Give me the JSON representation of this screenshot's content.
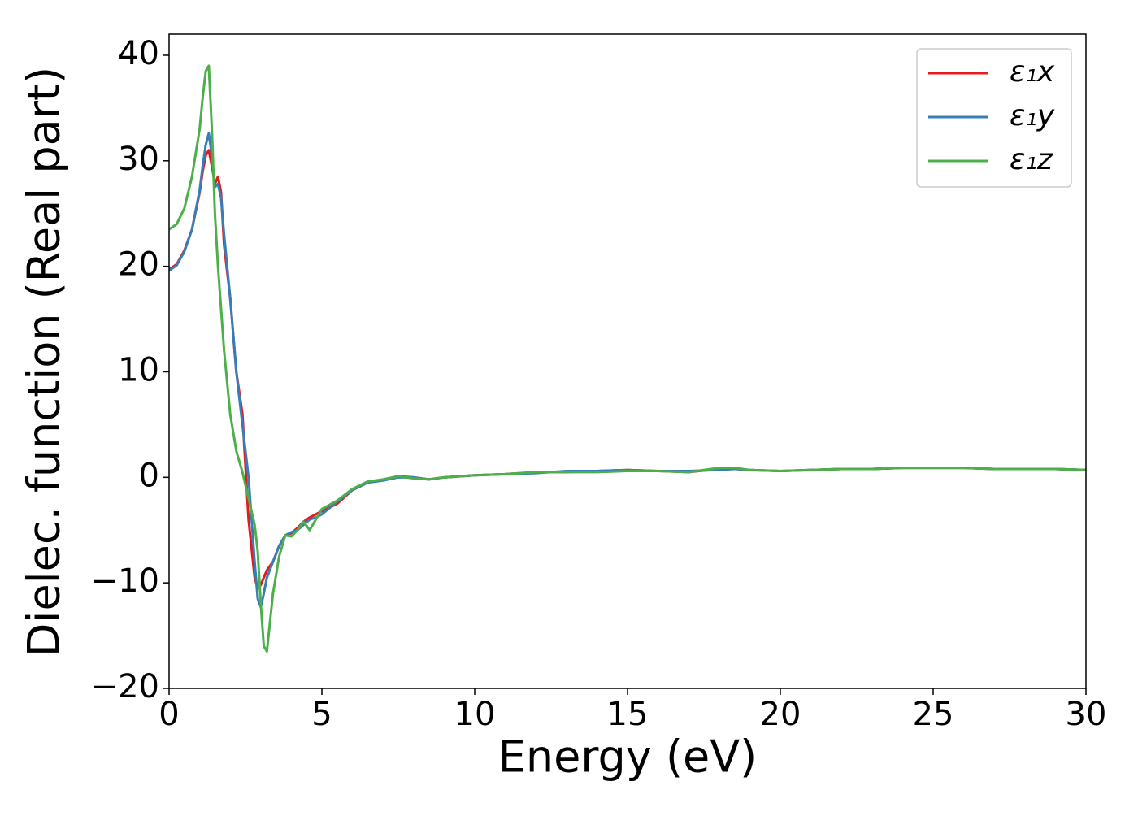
{
  "chart_data": {
    "type": "line",
    "xlabel": "Energy (eV)",
    "ylabel": "Dielec. function (Real part)",
    "xlim": [
      0,
      30
    ],
    "ylim": [
      -20,
      42
    ],
    "xticks": [
      0,
      5,
      10,
      15,
      20,
      25,
      30
    ],
    "yticks": [
      {
        "value": -20,
        "label": "−20"
      },
      {
        "value": -10,
        "label": "−10"
      },
      0,
      10,
      20,
      30,
      40
    ],
    "legend": "upper right",
    "x": [
      0,
      0.25,
      0.5,
      0.75,
      1.0,
      1.1,
      1.2,
      1.3,
      1.4,
      1.5,
      1.6,
      1.7,
      1.8,
      2.0,
      2.2,
      2.4,
      2.6,
      2.8,
      2.9,
      3.0,
      3.1,
      3.2,
      3.4,
      3.6,
      3.8,
      4.0,
      4.2,
      4.4,
      4.6,
      4.8,
      5.0,
      5.5,
      6.0,
      6.5,
      7.0,
      7.5,
      8.0,
      8.5,
      9,
      10,
      11,
      12,
      13,
      14,
      15,
      16,
      17,
      18,
      18.5,
      19,
      20,
      21,
      22,
      23,
      24,
      25,
      26,
      27,
      28,
      29,
      30
    ],
    "series": [
      {
        "name": "ε₁x",
        "color": "#e41a1c",
        "values": [
          19.7,
          20.2,
          21.5,
          23.5,
          27,
          29,
          30.5,
          31,
          29.5,
          27.8,
          28.5,
          27,
          22,
          17,
          10,
          6,
          -4,
          -9.5,
          -10.5,
          -10.2,
          -9.5,
          -8.8,
          -8,
          -6.5,
          -5.5,
          -5.3,
          -4.8,
          -4.2,
          -3.8,
          -3.5,
          -3.2,
          -2.5,
          -1.2,
          -0.5,
          -0.2,
          0.1,
          0.0,
          -0.2,
          0,
          0.2,
          0.3,
          0.5,
          0.5,
          0.6,
          0.7,
          0.6,
          0.5,
          0.8,
          0.8,
          0.7,
          0.6,
          0.7,
          0.8,
          0.8,
          0.9,
          0.9,
          0.9,
          0.8,
          0.8,
          0.8,
          0.7
        ]
      },
      {
        "name": "ε₁y",
        "color": "#377eb8",
        "values": [
          19.6,
          20.1,
          21.4,
          23.5,
          27.2,
          29.5,
          31.5,
          32.6,
          30.5,
          27.5,
          27.8,
          26.5,
          23,
          17,
          10,
          5,
          0,
          -8,
          -11.5,
          -12.3,
          -11,
          -9.5,
          -8,
          -6.5,
          -5.5,
          -5.2,
          -5,
          -4.5,
          -4,
          -3.8,
          -3.5,
          -2.3,
          -1.2,
          -0.5,
          -0.3,
          0,
          0,
          -0.2,
          0,
          0.2,
          0.3,
          0.4,
          0.6,
          0.6,
          0.7,
          0.6,
          0.6,
          0.7,
          0.8,
          0.7,
          0.6,
          0.7,
          0.8,
          0.8,
          0.9,
          0.9,
          0.9,
          0.8,
          0.8,
          0.8,
          0.7
        ]
      },
      {
        "name": "ε₁z",
        "color": "#4daf4a",
        "values": [
          23.5,
          24,
          25.5,
          28.5,
          33,
          36,
          38.5,
          39,
          33,
          25,
          20,
          16,
          12,
          6,
          2.5,
          0.5,
          -2,
          -4.5,
          -7,
          -12,
          -16,
          -16.5,
          -11,
          -7.5,
          -5.5,
          -5.6,
          -5,
          -4.2,
          -5,
          -4,
          -3,
          -2.2,
          -1.1,
          -0.4,
          -0.2,
          0.1,
          -0.1,
          -0.2,
          0,
          0.2,
          0.3,
          0.5,
          0.5,
          0.5,
          0.6,
          0.6,
          0.5,
          0.9,
          0.9,
          0.7,
          0.6,
          0.7,
          0.8,
          0.8,
          0.9,
          0.9,
          0.9,
          0.8,
          0.8,
          0.8,
          0.7
        ]
      }
    ]
  }
}
